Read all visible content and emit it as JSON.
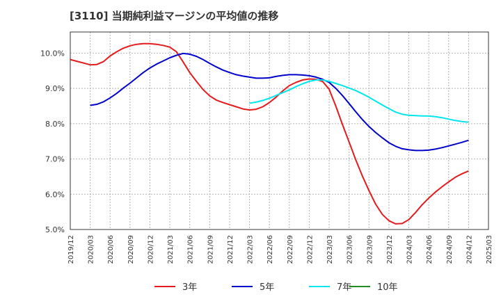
{
  "chart_data": {
    "type": "line",
    "title": "[3110]  当期純利益マージンの平均値の推移",
    "ylim": [
      5.0,
      10.6
    ],
    "y_ticks": [
      {
        "v": 5.0,
        "label": "5.0%"
      },
      {
        "v": 6.0,
        "label": "6.0%"
      },
      {
        "v": 7.0,
        "label": "7.0%"
      },
      {
        "v": 8.0,
        "label": "8.0%"
      },
      {
        "v": 9.0,
        "label": "9.0%"
      },
      {
        "v": 10.0,
        "label": "10.0%"
      }
    ],
    "x_ticks": [
      "2019/12",
      "2020/03",
      "2020/06",
      "2020/09",
      "2020/12",
      "2021/03",
      "2021/06",
      "2021/09",
      "2021/12",
      "2022/03",
      "2022/06",
      "2022/09",
      "2022/12",
      "2023/03",
      "2023/06",
      "2023/09",
      "2023/12",
      "2024/03",
      "2024/06",
      "2024/09",
      "2024/12",
      "2025/03"
    ],
    "grid": true,
    "legend_position": "bottom",
    "series": [
      {
        "name": "3年",
        "color": "#e41a1c",
        "points": [
          [
            "2019/12",
            9.82
          ],
          [
            "2020/01",
            9.77
          ],
          [
            "2020/02",
            9.72
          ],
          [
            "2020/03",
            9.67
          ],
          [
            "2020/04",
            9.68
          ],
          [
            "2020/05",
            9.76
          ],
          [
            "2020/06",
            9.92
          ],
          [
            "2020/07",
            10.04
          ],
          [
            "2020/08",
            10.14
          ],
          [
            "2020/09",
            10.21
          ],
          [
            "2020/10",
            10.25
          ],
          [
            "2020/11",
            10.27
          ],
          [
            "2020/12",
            10.27
          ],
          [
            "2021/01",
            10.25
          ],
          [
            "2021/02",
            10.22
          ],
          [
            "2021/03",
            10.17
          ],
          [
            "2021/04",
            10.04
          ],
          [
            "2021/05",
            9.75
          ],
          [
            "2021/06",
            9.45
          ],
          [
            "2021/07",
            9.2
          ],
          [
            "2021/08",
            8.97
          ],
          [
            "2021/09",
            8.79
          ],
          [
            "2021/10",
            8.67
          ],
          [
            "2021/11",
            8.6
          ],
          [
            "2021/12",
            8.54
          ],
          [
            "2022/01",
            8.48
          ],
          [
            "2022/02",
            8.42
          ],
          [
            "2022/03",
            8.39
          ],
          [
            "2022/04",
            8.41
          ],
          [
            "2022/05",
            8.48
          ],
          [
            "2022/06",
            8.6
          ],
          [
            "2022/07",
            8.75
          ],
          [
            "2022/08",
            8.93
          ],
          [
            "2022/09",
            9.08
          ],
          [
            "2022/10",
            9.17
          ],
          [
            "2022/11",
            9.24
          ],
          [
            "2022/12",
            9.27
          ],
          [
            "2023/01",
            9.26
          ],
          [
            "2023/02",
            9.2
          ],
          [
            "2023/03",
            8.98
          ],
          [
            "2023/04",
            8.5
          ],
          [
            "2023/05",
            7.98
          ],
          [
            "2023/06",
            7.48
          ],
          [
            "2023/07",
            6.98
          ],
          [
            "2023/08",
            6.52
          ],
          [
            "2023/09",
            6.1
          ],
          [
            "2023/10",
            5.72
          ],
          [
            "2023/11",
            5.43
          ],
          [
            "2023/12",
            5.25
          ],
          [
            "2024/01",
            5.16
          ],
          [
            "2024/02",
            5.17
          ],
          [
            "2024/03",
            5.28
          ],
          [
            "2024/04",
            5.48
          ],
          [
            "2024/05",
            5.7
          ],
          [
            "2024/06",
            5.89
          ],
          [
            "2024/07",
            6.06
          ],
          [
            "2024/08",
            6.21
          ],
          [
            "2024/09",
            6.35
          ],
          [
            "2024/10",
            6.48
          ],
          [
            "2024/11",
            6.58
          ],
          [
            "2024/12",
            6.66
          ]
        ]
      },
      {
        "name": "5年",
        "color": "#0000cc",
        "points": [
          [
            "2020/03",
            8.52
          ],
          [
            "2020/04",
            8.55
          ],
          [
            "2020/05",
            8.62
          ],
          [
            "2020/06",
            8.73
          ],
          [
            "2020/07",
            8.86
          ],
          [
            "2020/08",
            9.01
          ],
          [
            "2020/09",
            9.15
          ],
          [
            "2020/10",
            9.3
          ],
          [
            "2020/11",
            9.45
          ],
          [
            "2020/12",
            9.58
          ],
          [
            "2021/01",
            9.69
          ],
          [
            "2021/02",
            9.78
          ],
          [
            "2021/03",
            9.87
          ],
          [
            "2021/04",
            9.94
          ],
          [
            "2021/05",
            9.99
          ],
          [
            "2021/06",
            9.97
          ],
          [
            "2021/07",
            9.91
          ],
          [
            "2021/08",
            9.82
          ],
          [
            "2021/09",
            9.71
          ],
          [
            "2021/10",
            9.61
          ],
          [
            "2021/11",
            9.52
          ],
          [
            "2021/12",
            9.45
          ],
          [
            "2022/01",
            9.39
          ],
          [
            "2022/02",
            9.35
          ],
          [
            "2022/03",
            9.32
          ],
          [
            "2022/04",
            9.29
          ],
          [
            "2022/05",
            9.29
          ],
          [
            "2022/06",
            9.3
          ],
          [
            "2022/07",
            9.34
          ],
          [
            "2022/08",
            9.37
          ],
          [
            "2022/09",
            9.39
          ],
          [
            "2022/10",
            9.39
          ],
          [
            "2022/11",
            9.38
          ],
          [
            "2022/12",
            9.36
          ],
          [
            "2023/01",
            9.32
          ],
          [
            "2023/02",
            9.26
          ],
          [
            "2023/03",
            9.17
          ],
          [
            "2023/04",
            9.0
          ],
          [
            "2023/05",
            8.8
          ],
          [
            "2023/06",
            8.57
          ],
          [
            "2023/07",
            8.34
          ],
          [
            "2023/08",
            8.12
          ],
          [
            "2023/09",
            7.92
          ],
          [
            "2023/10",
            7.75
          ],
          [
            "2023/11",
            7.6
          ],
          [
            "2023/12",
            7.46
          ],
          [
            "2024/01",
            7.36
          ],
          [
            "2024/02",
            7.29
          ],
          [
            "2024/03",
            7.26
          ],
          [
            "2024/04",
            7.24
          ],
          [
            "2024/05",
            7.24
          ],
          [
            "2024/06",
            7.25
          ],
          [
            "2024/07",
            7.28
          ],
          [
            "2024/08",
            7.32
          ],
          [
            "2024/09",
            7.37
          ],
          [
            "2024/10",
            7.42
          ],
          [
            "2024/11",
            7.47
          ],
          [
            "2024/12",
            7.53
          ]
        ]
      },
      {
        "name": "7年",
        "color": "#00e5ee",
        "points": [
          [
            "2022/03",
            8.58
          ],
          [
            "2022/04",
            8.61
          ],
          [
            "2022/05",
            8.66
          ],
          [
            "2022/06",
            8.72
          ],
          [
            "2022/07",
            8.8
          ],
          [
            "2022/08",
            8.88
          ],
          [
            "2022/09",
            8.96
          ],
          [
            "2022/10",
            9.05
          ],
          [
            "2022/11",
            9.13
          ],
          [
            "2022/12",
            9.2
          ],
          [
            "2023/01",
            9.24
          ],
          [
            "2023/02",
            9.24
          ],
          [
            "2023/03",
            9.2
          ],
          [
            "2023/04",
            9.14
          ],
          [
            "2023/05",
            9.08
          ],
          [
            "2023/06",
            9.01
          ],
          [
            "2023/07",
            8.94
          ],
          [
            "2023/08",
            8.85
          ],
          [
            "2023/09",
            8.75
          ],
          [
            "2023/10",
            8.64
          ],
          [
            "2023/11",
            8.53
          ],
          [
            "2023/12",
            8.43
          ],
          [
            "2024/01",
            8.33
          ],
          [
            "2024/02",
            8.27
          ],
          [
            "2024/03",
            8.24
          ],
          [
            "2024/04",
            8.23
          ],
          [
            "2024/05",
            8.22
          ],
          [
            "2024/06",
            8.22
          ],
          [
            "2024/07",
            8.2
          ],
          [
            "2024/08",
            8.17
          ],
          [
            "2024/09",
            8.13
          ],
          [
            "2024/10",
            8.09
          ],
          [
            "2024/11",
            8.06
          ],
          [
            "2024/12",
            8.04
          ]
        ]
      },
      {
        "name": "10年",
        "color": "#228b22",
        "points": []
      }
    ]
  }
}
